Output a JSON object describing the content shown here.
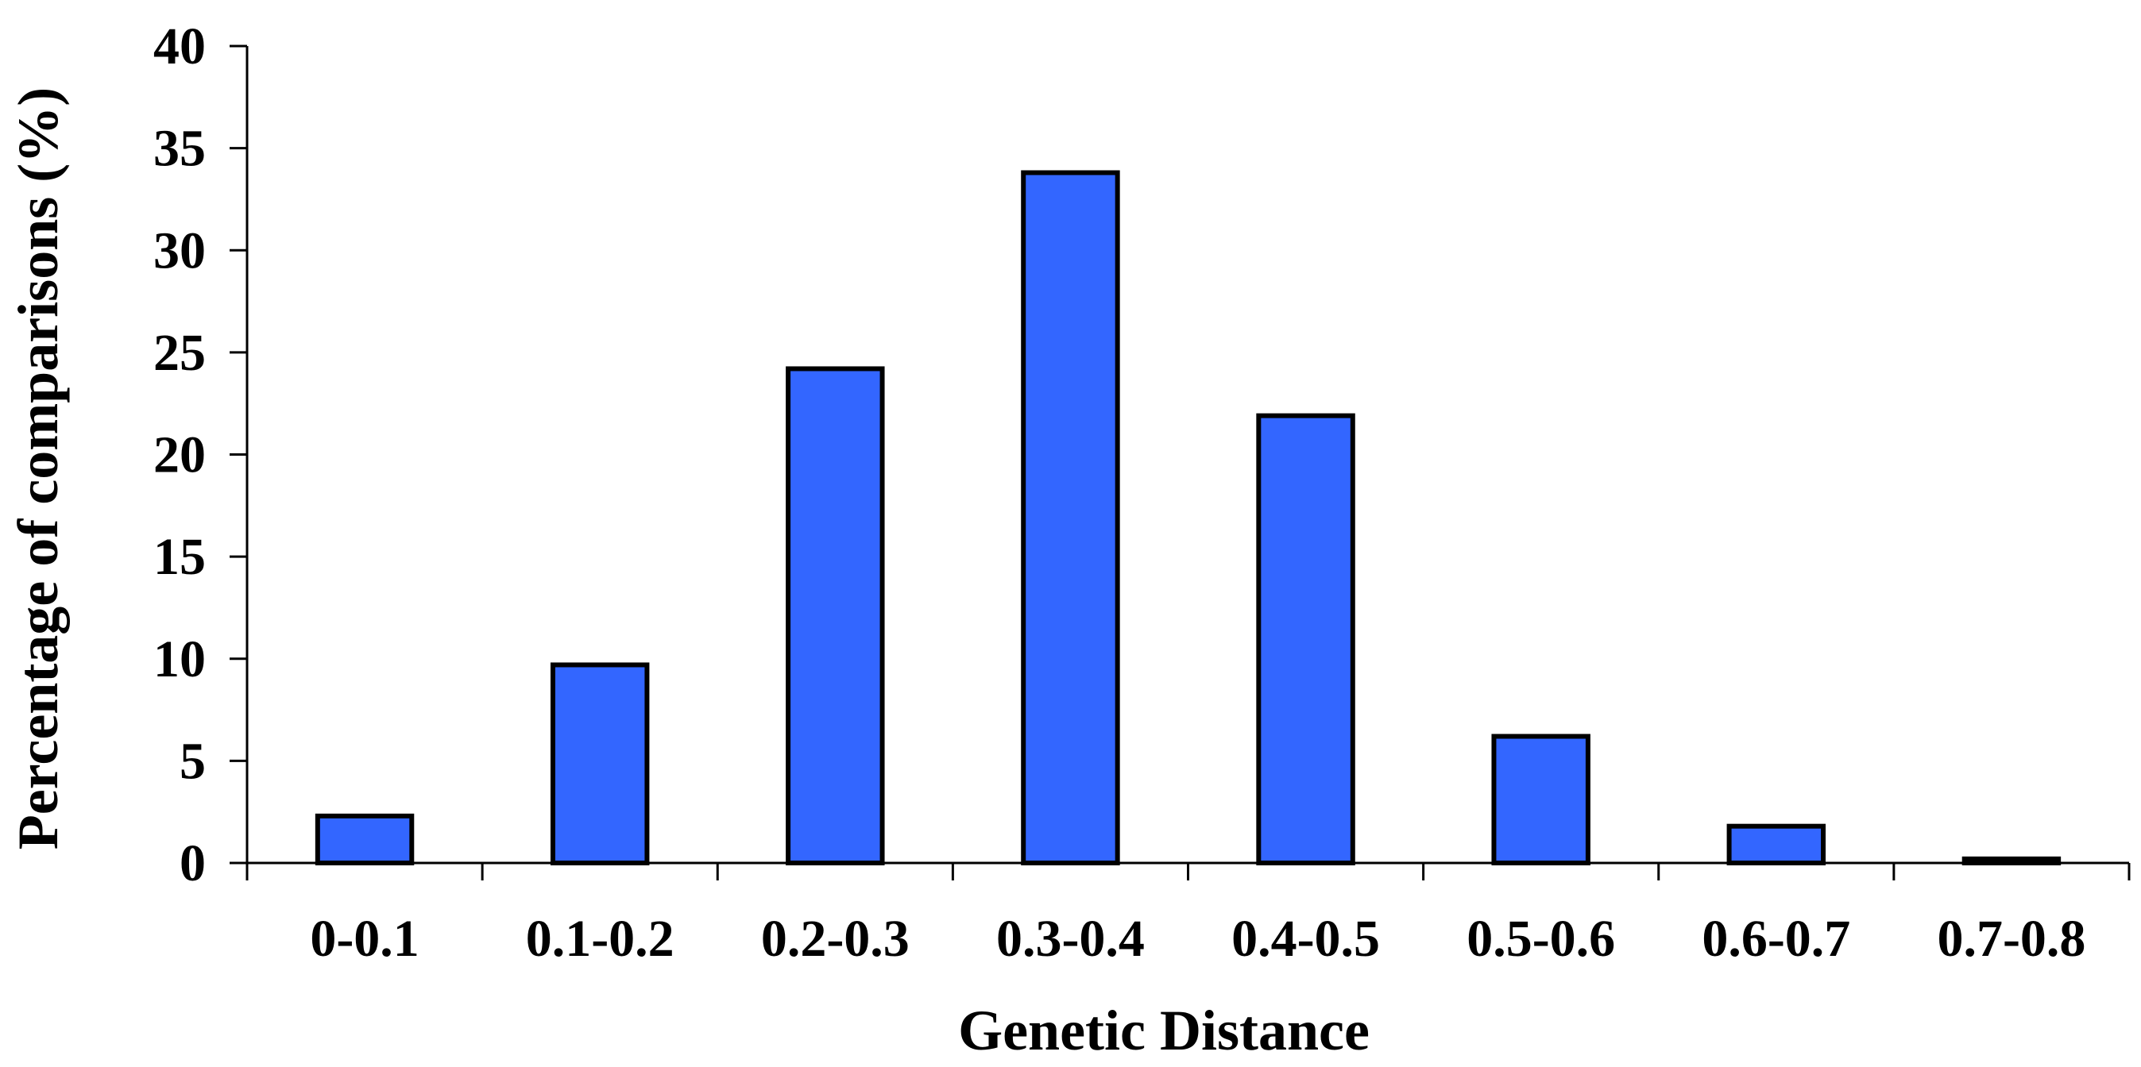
{
  "chart_data": {
    "type": "bar",
    "title": "",
    "xlabel": "Genetic Distance",
    "ylabel": "Percentage of comparisons (%)",
    "categories": [
      "0-0.1",
      "0.1-0.2",
      "0.2-0.3",
      "0.3-0.4",
      "0.4-0.5",
      "0.5-0.6",
      "0.6-0.7",
      "0.7-0.8"
    ],
    "values": [
      2.3,
      9.7,
      24.2,
      33.8,
      21.9,
      6.2,
      1.8,
      0.2
    ],
    "ylim": [
      0,
      40
    ],
    "yticks": [
      0,
      5,
      10,
      15,
      20,
      25,
      30,
      35,
      40
    ],
    "grid": false,
    "legend": "none",
    "bar_color": "#3366FF",
    "edge_color": "#000000"
  }
}
